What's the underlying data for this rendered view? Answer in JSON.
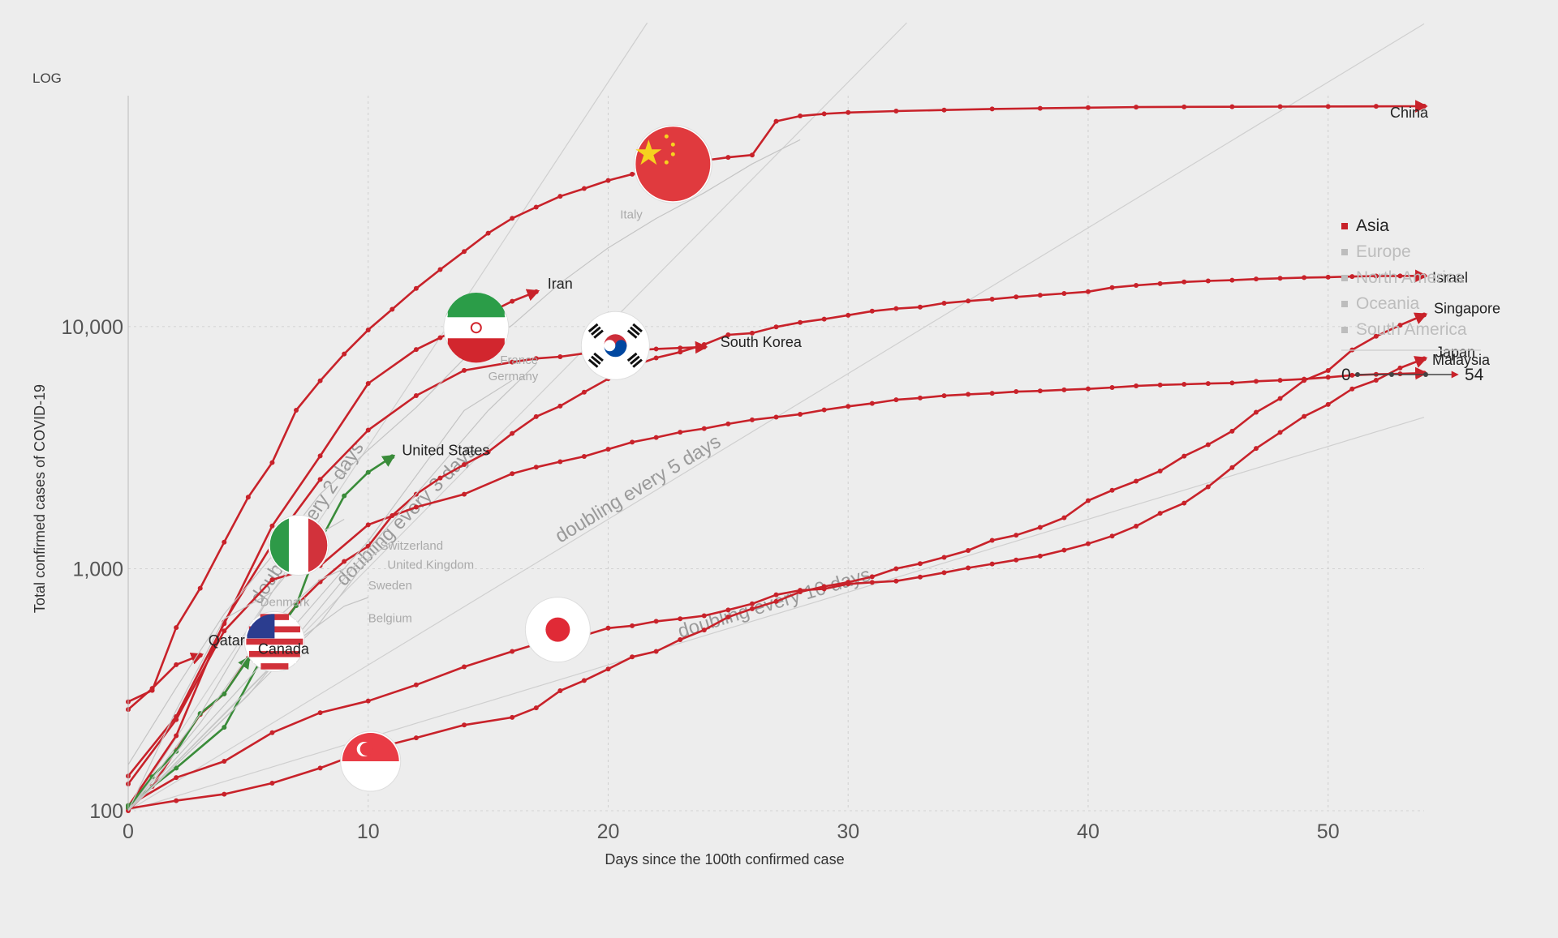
{
  "chart_data": {
    "type": "line",
    "scale_label": "LOG",
    "title": "",
    "xlabel": "Days since the 100th confirmed case",
    "ylabel": "Total confirmed cases of COVID-19",
    "y_scale": "log",
    "xlim": [
      0,
      54
    ],
    "ylim": [
      100,
      90000
    ],
    "x_ticks": [
      0,
      10,
      20,
      30,
      40,
      50
    ],
    "y_ticks": [
      {
        "value": 100,
        "label": "100"
      },
      {
        "value": 1000,
        "label": "1,000"
      },
      {
        "value": 10000,
        "label": "10,000"
      }
    ],
    "grid": true,
    "legend": {
      "position": "right",
      "items": [
        {
          "label": "Asia",
          "color": "#c8222a",
          "active": true
        },
        {
          "label": "Europe",
          "color": "#bdbdbd",
          "active": false
        },
        {
          "label": "North America",
          "color": "#bdbdbd",
          "active": false
        },
        {
          "label": "Oceania",
          "color": "#bdbdbd",
          "active": false
        },
        {
          "label": "South America",
          "color": "#bdbdbd",
          "active": false
        }
      ],
      "time_range": {
        "start": "0",
        "end": "54"
      }
    },
    "guides": [
      {
        "label": "doubling every 2 days",
        "doubling_days": 2
      },
      {
        "label": "doubling every 3 days",
        "doubling_days": 3
      },
      {
        "label": "doubling every 5 days",
        "doubling_days": 5
      },
      {
        "label": "doubling every 10 days",
        "doubling_days": 10
      }
    ],
    "colors": {
      "asia": "#c8222a",
      "north_america": "#3a8c3a",
      "muted": "#c4c4c4"
    },
    "series": [
      {
        "name": "China",
        "region": "asia",
        "flag": "china-flag",
        "x": [
          0,
          1,
          2,
          3,
          4,
          5,
          6,
          7,
          8,
          9,
          10,
          11,
          12,
          13,
          14,
          15,
          16,
          17,
          18,
          19,
          20,
          21,
          22,
          23,
          24,
          25,
          26,
          27,
          28,
          29,
          30,
          32,
          34,
          36,
          38,
          40,
          42,
          44,
          46,
          48,
          50,
          52,
          54
        ],
        "y": [
          282,
          314,
          571,
          830,
          1287,
          1975,
          2744,
          4515,
          5974,
          7711,
          9692,
          11791,
          14380,
          17205,
          20438,
          24324,
          28018,
          31161,
          34546,
          37198,
          40171,
          42638,
          44653,
          46472,
          48548,
          50054,
          51174,
          70548,
          74185,
          75700,
          76677,
          77754,
          78500,
          79300,
          79800,
          80300,
          80700,
          80900,
          81000,
          81100,
          81200,
          81300,
          81400
        ]
      },
      {
        "name": "Iran",
        "region": "asia",
        "flag": "iran-flag",
        "x": [
          0,
          2,
          4,
          6,
          8,
          10,
          12,
          13,
          14,
          15,
          16,
          17
        ],
        "y": [
          139,
          245,
          593,
          1501,
          2922,
          5823,
          8042,
          9000,
          10075,
          11364,
          12729,
          13938
        ]
      },
      {
        "name": "South Korea",
        "region": "asia",
        "flag": "south-korea-flag",
        "x": [
          0,
          2,
          4,
          6,
          8,
          10,
          12,
          14,
          16,
          17,
          18,
          19,
          20,
          21,
          22,
          23,
          24
        ],
        "y": [
          104,
          204,
          602,
          1261,
          2337,
          3736,
          5186,
          6593,
          7134,
          7382,
          7513,
          7755,
          7869,
          7979,
          8086,
          8162,
          8236
        ]
      },
      {
        "name": "Japan",
        "region": "asia",
        "flag": "japan-flag",
        "x": [
          0,
          2,
          4,
          6,
          8,
          10,
          12,
          14,
          16,
          17,
          18,
          19,
          20,
          21,
          22,
          23,
          24,
          25,
          26,
          27,
          28,
          29,
          30,
          31,
          32,
          33,
          34,
          35,
          36,
          37,
          38,
          39,
          40,
          41,
          42,
          43,
          44,
          45,
          46,
          47,
          48,
          49,
          50,
          51,
          52,
          53,
          54
        ],
        "y": [
          105,
          137,
          160,
          210,
          254,
          284,
          331,
          393,
          455,
          488,
          514,
          530,
          568,
          581,
          606,
          621,
          639,
          675,
          716,
          780,
          814,
          825,
          865,
          878,
          889,
          924,
          963,
          1007,
          1046,
          1086,
          1128,
          1193,
          1268,
          1364,
          1499,
          1693,
          1866,
          2178,
          2617,
          3139,
          3654,
          4257,
          4768,
          5530,
          6005,
          6748,
          7370
        ]
      },
      {
        "name": "Singapore",
        "region": "asia",
        "flag": "singapore-flag",
        "x": [
          0,
          2,
          4,
          6,
          8,
          10,
          12,
          14,
          16,
          17,
          18,
          19,
          20,
          21,
          22,
          23,
          24,
          25,
          26,
          27,
          28,
          29,
          30,
          31,
          32,
          33,
          34,
          35,
          36,
          37,
          38,
          39,
          40,
          41,
          42,
          43,
          44,
          45,
          46,
          47,
          48,
          49,
          50,
          51,
          52,
          53,
          54
        ],
        "y": [
          102,
          110,
          117,
          130,
          150,
          178,
          200,
          226,
          243,
          266,
          313,
          345,
          385,
          432,
          455,
          509,
          558,
          631,
          683,
          732,
          802,
          844,
          879,
          926,
          1000,
          1049,
          1114,
          1189,
          1309,
          1375,
          1481,
          1623,
          1910,
          2108,
          2299,
          2532,
          2918,
          3252,
          3699,
          4427,
          5050,
          5992,
          6588,
          8014,
          9125,
          10141,
          11178
        ]
      },
      {
        "name": "Malaysia",
        "region": "asia",
        "x": [
          0,
          2,
          4,
          6,
          8,
          10,
          12,
          14,
          16,
          17,
          18,
          19,
          20,
          21,
          22,
          23,
          24,
          25,
          26,
          27,
          28,
          29,
          30,
          31,
          32,
          33,
          34,
          35,
          36,
          37,
          38,
          39,
          40,
          41,
          42,
          43,
          44,
          45,
          46,
          47,
          48,
          49,
          50,
          51,
          52,
          53,
          54
        ],
        "y": [
          129,
          238,
          553,
          900,
          1030,
          1518,
          1796,
          2031,
          2470,
          2626,
          2766,
          2908,
          3116,
          3333,
          3483,
          3662,
          3793,
          3963,
          4119,
          4228,
          4346,
          4530,
          4683,
          4817,
          4987,
          5072,
          5182,
          5251,
          5305,
          5389,
          5425,
          5482,
          5532,
          5603,
          5691,
          5742,
          5780,
          5820,
          5851,
          5945,
          6002,
          6071,
          6176,
          6298,
          6353,
          6383,
          6428
        ]
      },
      {
        "name": "Qatar",
        "region": "asia",
        "x": [
          0,
          1,
          2,
          3
        ],
        "y": [
          262,
          320,
          401,
          439
        ]
      },
      {
        "name": "Israel",
        "region": "asia",
        "x": [
          0,
          1,
          2,
          3,
          4,
          5,
          6,
          7,
          8,
          9,
          10,
          11,
          12,
          13,
          14,
          15,
          16,
          17,
          18,
          19,
          20,
          21,
          22,
          23,
          24,
          25,
          26,
          27,
          28,
          29,
          30,
          31,
          32,
          33,
          34,
          35,
          36,
          37,
          38,
          39,
          40,
          41,
          42,
          43,
          44,
          45,
          46,
          47,
          48,
          49,
          50,
          51,
          52,
          53,
          54
        ],
        "y": [
          100,
          126,
          178,
          250,
          304,
          427,
          529,
          705,
          883,
          1071,
          1238,
          1656,
          2030,
          2369,
          2693,
          3035,
          3619,
          4247,
          4695,
          5358,
          6092,
          6857,
          7428,
          7851,
          8430,
          9248,
          9404,
          9968,
          10408,
          10743,
          11145,
          11586,
          11868,
          12046,
          12501,
          12758,
          12982,
          13265,
          13491,
          13713,
          13942,
          14498,
          14803,
          15058,
          15298,
          15443,
          15555,
          15728,
          15834,
          15946,
          16004,
          16101,
          16185,
          16193,
          16208
        ]
      },
      {
        "name": "United States",
        "region": "north_america",
        "flag": "usa-flag",
        "x": [
          0,
          2,
          4,
          6,
          7,
          8,
          9,
          10,
          11
        ],
        "y": [
          105,
          150,
          221,
          512,
          704,
          1301,
          2000,
          2500,
          2900
        ]
      },
      {
        "name": "Canada",
        "region": "north_america",
        "x": [
          0,
          1,
          2,
          3,
          4,
          5
        ],
        "y": [
          103,
          138,
          176,
          252,
          304,
          424
        ]
      },
      {
        "name": "Italy",
        "region": "europe",
        "flag": "italy-flag",
        "x": [
          0,
          2,
          4,
          6,
          8,
          10,
          12,
          14,
          16,
          18,
          20,
          22,
          24,
          26,
          28
        ],
        "y": [
          155,
          322,
          650,
          1128,
          2036,
          3089,
          4636,
          7375,
          10149,
          15113,
          21157,
          27980,
          35713,
          47021,
          59138
        ]
      },
      {
        "name": "France",
        "region": "europe",
        "x": [
          0,
          5,
          10,
          15,
          17
        ],
        "y": [
          100,
          300,
          1200,
          4500,
          7000
        ]
      },
      {
        "name": "Germany",
        "region": "europe",
        "x": [
          0,
          5,
          10,
          14,
          16
        ],
        "y": [
          100,
          350,
          1300,
          4500,
          6000
        ]
      },
      {
        "name": "Switzerland",
        "region": "europe",
        "x": [
          0,
          3,
          6,
          8,
          9
        ],
        "y": [
          100,
          250,
          800,
          1400,
          1600
        ]
      },
      {
        "name": "United Kingdom",
        "region": "europe",
        "x": [
          0,
          4,
          8,
          10,
          11
        ],
        "y": [
          100,
          240,
          600,
          1100,
          1300
        ]
      },
      {
        "name": "Sweden",
        "region": "europe",
        "x": [
          0,
          3,
          6,
          8,
          9
        ],
        "y": [
          100,
          230,
          600,
          900,
          1000
        ]
      },
      {
        "name": "Denmark",
        "region": "europe",
        "x": [
          0,
          2,
          4,
          6
        ],
        "y": [
          100,
          260,
          620,
          800
        ]
      },
      {
        "name": "Belgium",
        "region": "europe",
        "x": [
          0,
          4,
          7,
          9,
          10
        ],
        "y": [
          100,
          250,
          500,
          700,
          760
        ]
      }
    ],
    "annotations": [
      {
        "label": "France",
        "x": 15.5,
        "y": 7000
      },
      {
        "label": "Germany",
        "x": 15.0,
        "y": 6000
      },
      {
        "label": "Italy",
        "x": 20.5,
        "y": 28000
      },
      {
        "label": "Switzerland",
        "x": 10.5,
        "y": 1200
      },
      {
        "label": "United Kingdom",
        "x": 10.8,
        "y": 1000
      },
      {
        "label": "Sweden",
        "x": 10.0,
        "y": 820
      },
      {
        "label": "Denmark",
        "x": 5.5,
        "y": 700
      },
      {
        "label": "Belgium",
        "x": 10.0,
        "y": 600
      }
    ]
  }
}
